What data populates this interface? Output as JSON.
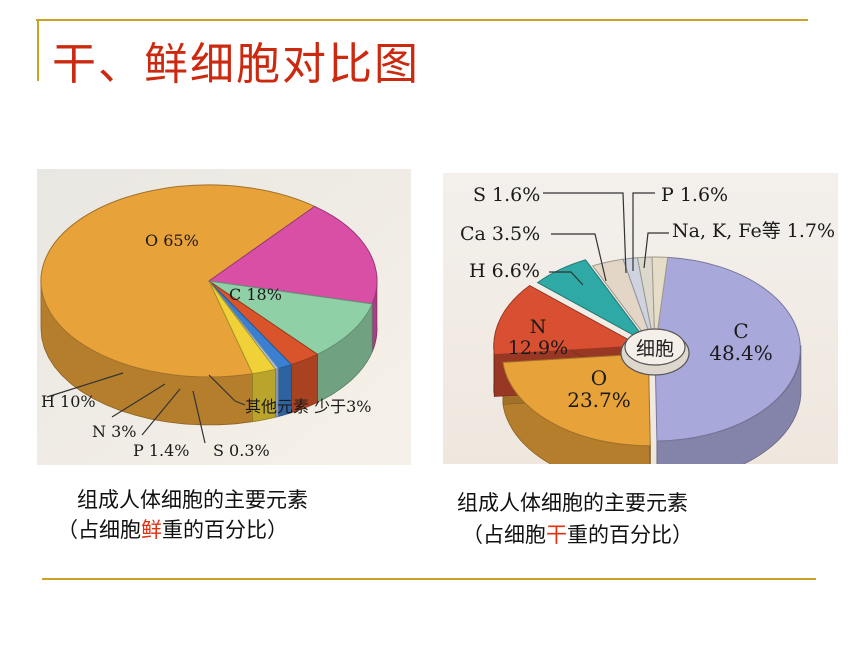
{
  "slide": {
    "title": "干、鲜细胞对比图"
  },
  "colors": {
    "title": "#cc2a10",
    "rule": "#c9a227",
    "highlight": "#e03010"
  },
  "chart_data": [
    {
      "type": "pie",
      "style": "3d",
      "categories": [
        "O",
        "C",
        "H",
        "N",
        "P",
        "S",
        "其他元素"
      ],
      "values": [
        65,
        18,
        10,
        3,
        1.4,
        0.3,
        2.3
      ],
      "slice_labels": [
        "O 65%",
        "C 18%",
        "H 10%",
        "N 3%",
        "P 1.4%",
        "S 0.3%",
        "其他元素 少于3%"
      ],
      "colors": [
        "#e8a23a",
        "#d94fa6",
        "#8fd0a7",
        "#d9542a",
        "#3b7fd0",
        "#a9c8ee",
        "#f0d238"
      ],
      "caption_line1": "组成人体细胞的主要元素",
      "caption_line2_before": "（占细胞",
      "caption_line2_highlight": "鲜",
      "caption_line2_after": "重的百分比）"
    },
    {
      "type": "pie",
      "style": "3d-exploded",
      "categories": [
        "C",
        "O",
        "N",
        "H",
        "Ca",
        "S",
        "P",
        "Na, K, Fe等"
      ],
      "values": [
        48.4,
        23.7,
        12.9,
        6.6,
        3.5,
        1.6,
        1.6,
        1.7
      ],
      "slice_labels": [
        "C\n48.4%",
        "O\n23.7%",
        "N\n12.9%",
        "H 6.6%",
        "Ca 3.5%",
        "S 1.6%",
        "P 1.6%",
        "Na, K, Fe等 1.7%"
      ],
      "colors": [
        "#a9a8da",
        "#e8a23a",
        "#d94f32",
        "#2ea9a6",
        "#e3d6c6",
        "#cfd3df",
        "#dcd8cc",
        "#e6ddc8"
      ],
      "center_label": "细胞",
      "caption_line1": "组成人体细胞的主要元素",
      "caption_line2_before": "（占细胞",
      "caption_line2_highlight": "干",
      "caption_line2_after": "重的百分比）"
    }
  ]
}
